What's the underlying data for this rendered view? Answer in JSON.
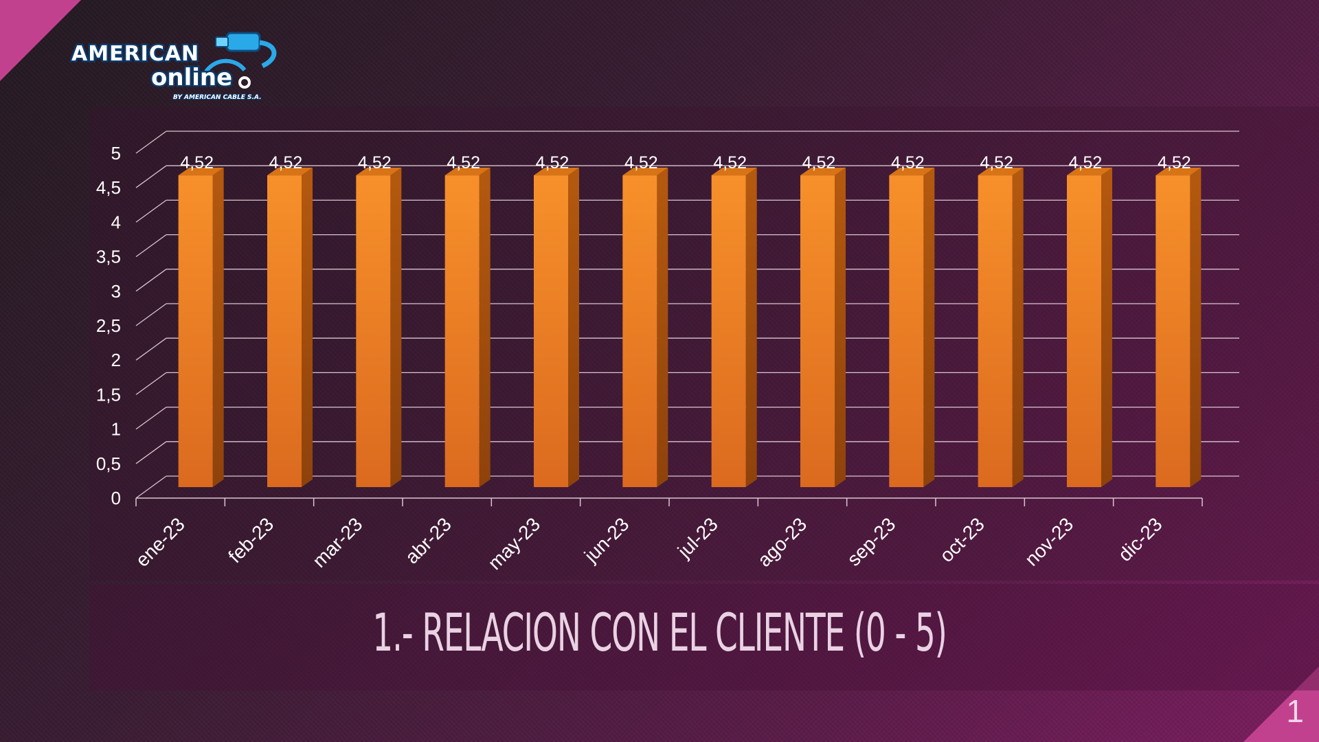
{
  "logo": {
    "line1": "AMERICAN",
    "line2": "online",
    "tagline": "BY AMERICAN CABLE S.A."
  },
  "title": "1.- RELACION CON EL CLIENTE (0 - 5)",
  "page_number": "1",
  "colors": {
    "bar": "#f7902a",
    "bar_side": "#b4590f",
    "bar_top": "#d87416",
    "accent": "#c2418f"
  },
  "chart_data": {
    "type": "bar",
    "title": "",
    "xlabel": "",
    "ylabel": "",
    "categories": [
      "ene-23",
      "feb-23",
      "mar-23",
      "abr-23",
      "may-23",
      "jun-23",
      "jul-23",
      "ago-23",
      "sep-23",
      "oct-23",
      "nov-23",
      "dic-23"
    ],
    "values": [
      4.52,
      4.52,
      4.52,
      4.52,
      4.52,
      4.52,
      4.52,
      4.52,
      4.52,
      4.52,
      4.52,
      4.52
    ],
    "value_labels": [
      "4,52",
      "4,52",
      "4,52",
      "4,52",
      "4,52",
      "4,52",
      "4,52",
      "4,52",
      "4,52",
      "4,52",
      "4,52",
      "4,52"
    ],
    "y_ticks": [
      "0",
      "0,5",
      "1",
      "1,5",
      "2",
      "2,5",
      "3",
      "3,5",
      "4",
      "4,5",
      "5"
    ],
    "ylim": [
      0,
      5
    ],
    "grid": true,
    "legend": "none",
    "style": "3d"
  }
}
